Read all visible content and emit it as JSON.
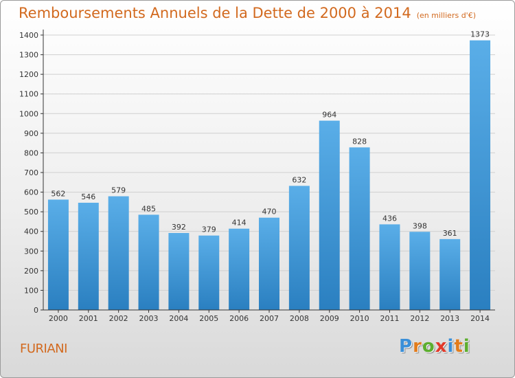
{
  "chart_data": {
    "type": "bar",
    "title": "Remboursements Annuels de la Dette de 2000 à 2014",
    "unit_note": "(en milliers d'€)",
    "categories": [
      "2000",
      "2001",
      "2002",
      "2003",
      "2004",
      "2005",
      "2006",
      "2007",
      "2008",
      "2009",
      "2010",
      "2011",
      "2012",
      "2013",
      "2014"
    ],
    "values": [
      562,
      546,
      579,
      485,
      392,
      379,
      414,
      470,
      632,
      964,
      828,
      436,
      398,
      361,
      1373
    ],
    "ylim": [
      0,
      1400
    ],
    "yticks": [
      0,
      100,
      200,
      300,
      400,
      500,
      600,
      700,
      800,
      900,
      1000,
      1100,
      1200,
      1300,
      1400
    ],
    "grid": true,
    "bar_color_top": "#5aaee8",
    "bar_color_bottom": "#2a7fc0"
  },
  "commune": "FURIANI",
  "logo": {
    "letters": [
      "P",
      "r",
      "o",
      "x",
      "i",
      "t",
      "i"
    ],
    "colors": [
      "#3a8fd8",
      "#e27c1c",
      "#5cae2e",
      "#e23a2a",
      "#3a8fd8",
      "#e27c1c",
      "#5cae2e"
    ]
  },
  "colors": {
    "title": "#d2691e",
    "axis": "#333333",
    "grid": "#cfcfcf"
  }
}
